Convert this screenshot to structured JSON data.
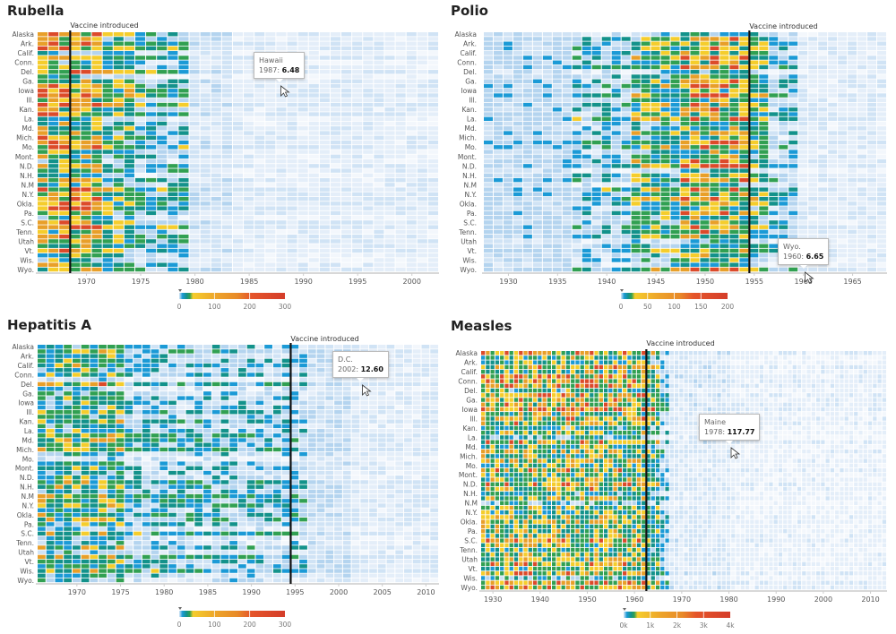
{
  "state_labels": [
    "Alaska",
    "Ark.",
    "Calif.",
    "Conn.",
    "Del.",
    "Ga.",
    "Iowa",
    "Ill.",
    "Kan.",
    "La.",
    "Md.",
    "Mich.",
    "Mo.",
    "Mont.",
    "N.D.",
    "N.H.",
    "N.M",
    "N.Y.",
    "Okla.",
    "Pa.",
    "S.C.",
    "Tenn.",
    "Utah",
    "Vt.",
    "Wis.",
    "Wyo."
  ],
  "vaccine_label": "Vaccine introduced",
  "colors": {
    "levels": [
      "#f3f7fc",
      "#e4eef9",
      "#d0e3f5",
      "#b4d4ef",
      "#1b9ad6",
      "#13928b",
      "#31a052",
      "#f5cd2c",
      "#e89f29",
      "#dc4a2a"
    ],
    "vaccine_line": "#111111"
  },
  "chart_data": [
    {
      "type": "heatmap",
      "title": "Rubella",
      "x_range": [
        1966,
        2002
      ],
      "rows": 51,
      "x_ticks": [
        1970,
        1975,
        1980,
        1985,
        1990,
        1995,
        2000
      ],
      "vaccine_year": 1969,
      "intensity_profile": [
        [
          1966,
          1971,
          7.2
        ],
        [
          1972,
          1974,
          5.4
        ],
        [
          1975,
          1979,
          4.2
        ],
        [
          1980,
          1983,
          2.0
        ],
        [
          1984,
          2002,
          1.3
        ]
      ],
      "legend_ticks": [
        "0",
        "100",
        "200",
        "300"
      ],
      "tooltip": {
        "state": "Hawaii",
        "year": "1987",
        "value": "6.48"
      }
    },
    {
      "type": "heatmap",
      "title": "Polio",
      "x_range": [
        1928,
        1968
      ],
      "rows": 51,
      "x_ticks": [
        1930,
        1935,
        1940,
        1945,
        1950,
        1955,
        1960,
        1965
      ],
      "vaccine_year": 1955,
      "intensity_profile": [
        [
          1928,
          1936,
          2.8
        ],
        [
          1937,
          1942,
          3.6
        ],
        [
          1943,
          1947,
          5.3
        ],
        [
          1948,
          1954,
          6.8
        ],
        [
          1955,
          1956,
          5.2
        ],
        [
          1957,
          1959,
          3.4
        ],
        [
          1960,
          1968,
          1.3
        ]
      ],
      "legend_ticks": [
        "0",
        "50",
        "100",
        "150",
        "200"
      ],
      "tooltip": {
        "state": "Wyo.",
        "year": "1960",
        "value": "6.65"
      }
    },
    {
      "type": "heatmap",
      "title": "Hepatitis A",
      "x_range": [
        1966,
        2011
      ],
      "rows": 51,
      "x_ticks": [
        1970,
        1975,
        1980,
        1985,
        1990,
        1995,
        2000,
        2005,
        2010
      ],
      "vaccine_year": 1995,
      "intensity_profile": [
        [
          1966,
          1975,
          5.6
        ],
        [
          1976,
          1988,
          3.7
        ],
        [
          1989,
          1996,
          3.5
        ],
        [
          1997,
          2001,
          2.3
        ],
        [
          2002,
          2011,
          1.4
        ]
      ],
      "legend_ticks": [
        "0",
        "100",
        "200",
        "300"
      ],
      "tooltip": {
        "state": "D.C.",
        "year": "2002",
        "value": "12.60"
      }
    },
    {
      "type": "heatmap",
      "title": "Measles",
      "x_range": [
        1928,
        2013
      ],
      "rows": 51,
      "x_ticks": [
        1930,
        1940,
        1950,
        1960,
        1970,
        1980,
        1990,
        2000,
        2010
      ],
      "vaccine_year": 1963,
      "intensity_profile": [
        [
          1928,
          1962,
          6.6
        ],
        [
          1963,
          1965,
          5.6
        ],
        [
          1966,
          1967,
          3.4
        ],
        [
          1968,
          1980,
          1.6
        ],
        [
          1981,
          2013,
          0.9
        ]
      ],
      "legend_ticks": [
        "0k",
        "1k",
        "2k",
        "3k",
        "4k"
      ],
      "tooltip": {
        "state": "Maine",
        "year": "1978",
        "value": "117.77"
      }
    }
  ]
}
